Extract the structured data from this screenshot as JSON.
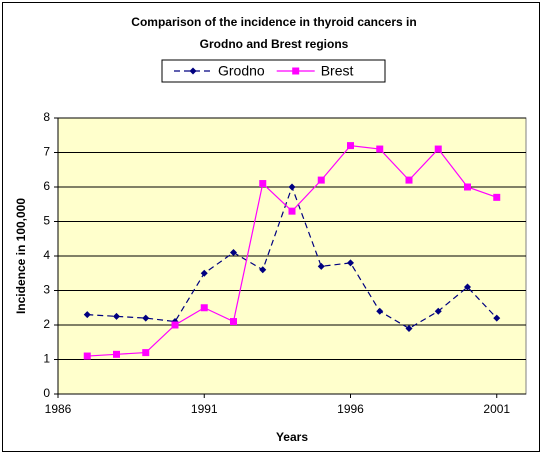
{
  "chart_data": {
    "type": "line",
    "title": [
      "Comparison of the incidence in thyroid cancers in",
      "Grodno and Brest regions"
    ],
    "x_label": "Years",
    "y_label": "Incidence in 100,000",
    "x": [
      1987,
      1988,
      1989,
      1990,
      1991,
      1992,
      1993,
      1994,
      1995,
      1996,
      1997,
      1998,
      1999,
      2000,
      2001
    ],
    "series": [
      {
        "name": "Grodno",
        "color": "#000080",
        "dash": true,
        "marker": "diamond",
        "values": [
          2.3,
          2.25,
          2.2,
          2.1,
          3.5,
          4.1,
          3.6,
          6.0,
          3.7,
          3.8,
          2.4,
          1.9,
          2.4,
          3.1,
          2.2
        ]
      },
      {
        "name": "Brest",
        "color": "#ff00ff",
        "dash": false,
        "marker": "square",
        "values": [
          1.1,
          1.15,
          1.2,
          2.0,
          2.5,
          2.1,
          6.1,
          5.3,
          6.2,
          7.2,
          7.1,
          6.2,
          7.1,
          6.0,
          5.7
        ]
      }
    ],
    "xlim": [
      1986,
      2002
    ],
    "xticks": [
      1986,
      1991,
      1996,
      2001
    ],
    "ylim": [
      0,
      8
    ],
    "yticks": [
      0,
      1,
      2,
      3,
      4,
      5,
      6,
      7,
      8
    ],
    "grid": true,
    "legend": "top",
    "plot_background": "#ffffcc"
  }
}
